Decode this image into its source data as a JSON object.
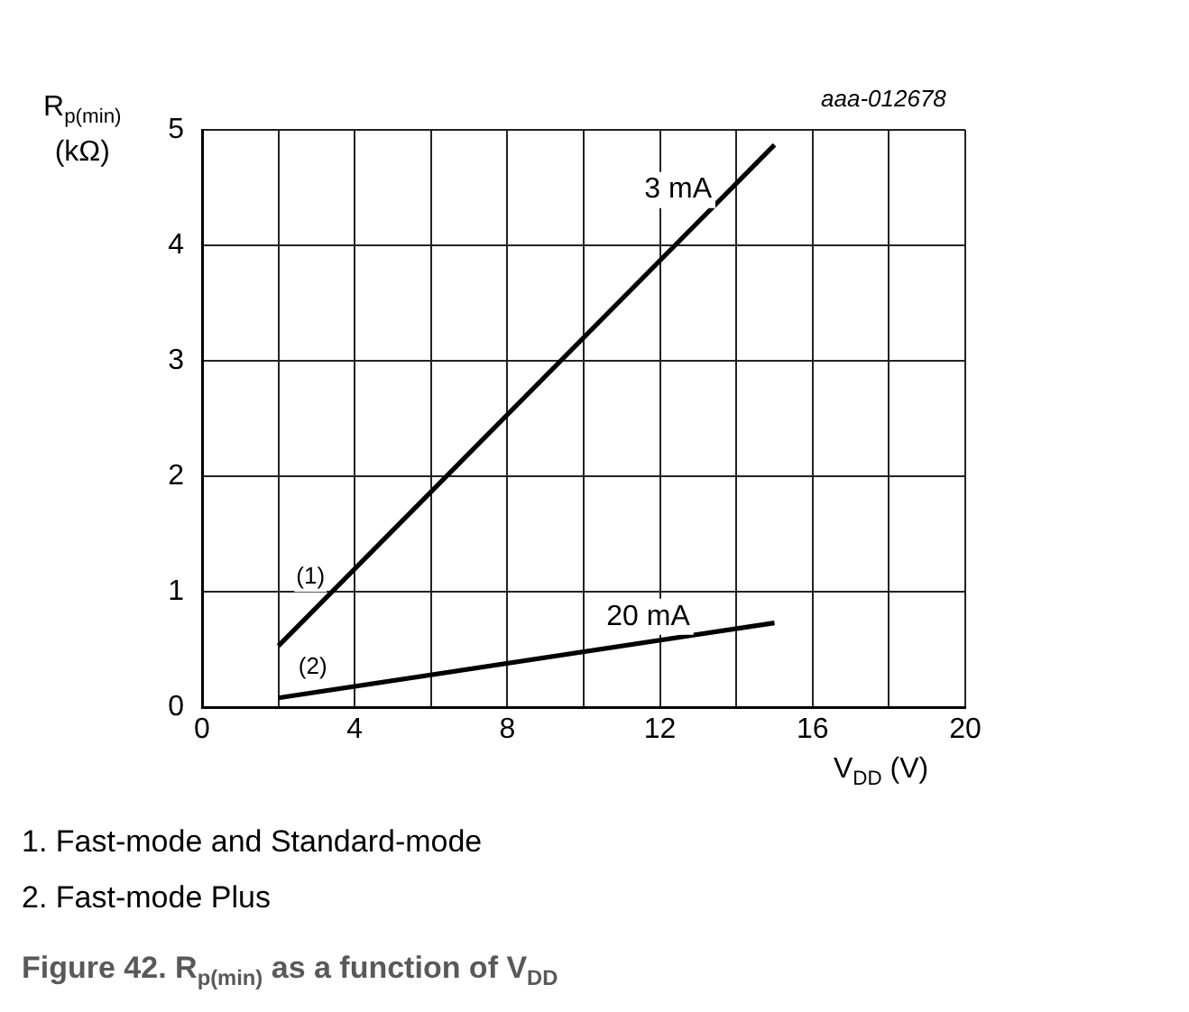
{
  "chart_data": {
    "type": "line",
    "title": "Figure 42.  R$_{p(min)}$ as a function of V$_{DD}$",
    "xlabel": "V$_{DD}$ (V)",
    "ylabel": "R$_{p(min)}$ (kΩ)",
    "x": [
      2,
      15
    ],
    "series": [
      {
        "name": "3 mA",
        "color": "#000000",
        "values": [
          0.53,
          4.87
        ]
      },
      {
        "name": "20 mA",
        "color": "#000000",
        "values": [
          0.08,
          0.73
        ]
      }
    ],
    "xlim": [
      0,
      20
    ],
    "xticks": [
      0,
      {
        "value": 2,
        "label": null
      },
      4,
      {
        "value": 6,
        "label": null
      },
      8,
      {
        "value": 10,
        "label": null
      },
      12,
      {
        "value": 14,
        "label": null
      },
      16,
      {
        "value": 18,
        "label": null
      },
      20
    ],
    "ylim": [
      0,
      5
    ],
    "yticks": [
      0,
      1,
      2,
      3,
      4,
      5
    ],
    "grid": true,
    "legend": false,
    "marker": "none",
    "line_style": "solid",
    "annotations": [
      {
        "text": "(1)",
        "x": 3.5,
        "y": 1.03
      },
      {
        "text": "(2)",
        "x": 2.9,
        "y": 0.125
      },
      "aaa-012678",
      "1.   Fast-mode and Standard-mode",
      "2.   Fast-mode Plus"
    ]
  }
}
